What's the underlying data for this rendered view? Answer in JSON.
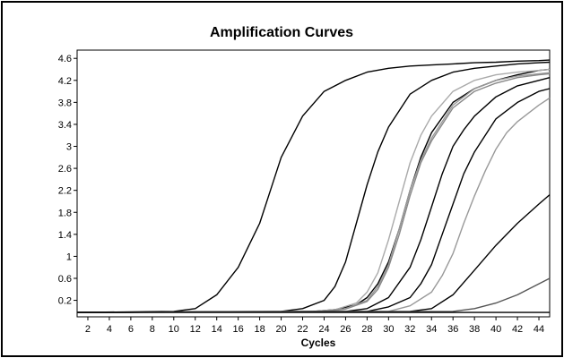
{
  "chart_data": {
    "type": "line",
    "title": "Amplification Curves",
    "xlabel": "Cycles",
    "ylabel": "",
    "xlim": [
      1,
      45
    ],
    "ylim": [
      -0.1,
      4.75
    ],
    "x_ticks": [
      2,
      4,
      6,
      8,
      10,
      12,
      14,
      16,
      18,
      20,
      22,
      24,
      26,
      28,
      30,
      32,
      34,
      36,
      38,
      40,
      42,
      44
    ],
    "y_ticks": [
      0.2,
      0.6,
      1,
      1.4,
      1.8,
      2.2,
      2.6,
      3,
      3.4,
      3.8,
      4.2,
      4.6
    ],
    "y_tick_labels": [
      "0.2",
      "0.6",
      "1",
      "1.4",
      "1.8",
      "2.2",
      "2.6",
      "3",
      "3.4",
      "3.8",
      "4.2",
      "4.6"
    ],
    "grid": false,
    "series": [
      {
        "color": "#000000",
        "x": [
          1,
          10,
          12,
          14,
          16,
          18,
          19,
          20,
          22,
          24,
          26,
          28,
          30,
          32,
          34,
          36,
          38,
          40,
          42,
          44,
          45
        ],
        "y": [
          -0.02,
          0.0,
          0.05,
          0.3,
          0.8,
          1.6,
          2.2,
          2.8,
          3.55,
          4.0,
          4.2,
          4.35,
          4.42,
          4.46,
          4.48,
          4.5,
          4.52,
          4.53,
          4.55,
          4.56,
          4.57
        ]
      },
      {
        "color": "#000000",
        "x": [
          1,
          20,
          22,
          24,
          25,
          26,
          27,
          28,
          29,
          30,
          32,
          34,
          36,
          38,
          40,
          42,
          44,
          45
        ],
        "y": [
          -0.02,
          0.0,
          0.05,
          0.2,
          0.45,
          0.9,
          1.6,
          2.3,
          2.9,
          3.35,
          3.95,
          4.2,
          4.35,
          4.42,
          4.46,
          4.5,
          4.52,
          4.53
        ]
      },
      {
        "color": "#000000",
        "x": [
          1,
          23,
          25,
          27,
          28,
          29,
          30,
          31,
          32,
          33,
          34,
          36,
          38,
          40,
          42,
          44,
          45
        ],
        "y": [
          -0.02,
          0.0,
          0.03,
          0.12,
          0.25,
          0.5,
          0.9,
          1.5,
          2.2,
          2.8,
          3.25,
          3.8,
          4.05,
          4.2,
          4.3,
          4.38,
          4.4
        ]
      },
      {
        "color": "#aaaaaa",
        "x": [
          1,
          23,
          25,
          27,
          28,
          29,
          30,
          31,
          32,
          33,
          34,
          36,
          38,
          40,
          42,
          44,
          45
        ],
        "y": [
          -0.02,
          0.0,
          0.03,
          0.15,
          0.35,
          0.7,
          1.3,
          2.0,
          2.7,
          3.2,
          3.55,
          4.0,
          4.2,
          4.3,
          4.35,
          4.38,
          4.4
        ]
      },
      {
        "color": "#999999",
        "x": [
          1,
          24,
          26,
          28,
          29,
          30,
          31,
          32,
          33,
          34,
          36,
          38,
          40,
          42,
          44,
          45
        ],
        "y": [
          -0.02,
          0.0,
          0.05,
          0.2,
          0.45,
          0.85,
          1.5,
          2.2,
          2.75,
          3.15,
          3.75,
          4.05,
          4.2,
          4.28,
          4.32,
          4.34
        ]
      },
      {
        "color": "#888888",
        "x": [
          1,
          24,
          26,
          28,
          29,
          30,
          31,
          32,
          33,
          34,
          36,
          38,
          40,
          42,
          44,
          45
        ],
        "y": [
          -0.02,
          0.0,
          0.04,
          0.18,
          0.4,
          0.8,
          1.4,
          2.1,
          2.7,
          3.1,
          3.7,
          4.0,
          4.15,
          4.25,
          4.3,
          4.32
        ]
      },
      {
        "color": "#000000",
        "x": [
          1,
          26,
          28,
          30,
          32,
          33,
          34,
          35,
          36,
          37,
          38,
          40,
          42,
          44,
          45
        ],
        "y": [
          -0.02,
          0.0,
          0.05,
          0.25,
          0.8,
          1.3,
          1.9,
          2.5,
          3.0,
          3.3,
          3.55,
          3.9,
          4.1,
          4.2,
          4.25
        ]
      },
      {
        "color": "#000000",
        "x": [
          1,
          28,
          30,
          32,
          33,
          34,
          35,
          36,
          37,
          38,
          40,
          42,
          44,
          45
        ],
        "y": [
          -0.02,
          0.0,
          0.08,
          0.25,
          0.5,
          0.85,
          1.4,
          1.95,
          2.5,
          2.9,
          3.5,
          3.8,
          4.0,
          4.05
        ]
      },
      {
        "color": "#999999",
        "x": [
          1,
          30,
          32,
          34,
          35,
          36,
          37,
          38,
          39,
          40,
          41,
          42,
          43,
          44,
          45
        ],
        "y": [
          -0.02,
          0.0,
          0.1,
          0.35,
          0.65,
          1.05,
          1.6,
          2.1,
          2.55,
          2.95,
          3.25,
          3.45,
          3.6,
          3.75,
          3.88
        ]
      },
      {
        "color": "#000000",
        "x": [
          1,
          32,
          34,
          36,
          38,
          40,
          42,
          44,
          45
        ],
        "y": [
          -0.02,
          0.0,
          0.05,
          0.3,
          0.75,
          1.2,
          1.6,
          1.95,
          2.12
        ]
      },
      {
        "color": "#555555",
        "x": [
          1,
          36,
          38,
          40,
          42,
          44,
          45
        ],
        "y": [
          -0.02,
          0.0,
          0.05,
          0.15,
          0.3,
          0.5,
          0.6
        ]
      },
      {
        "color": "#000000",
        "x": [
          1,
          45
        ],
        "y": [
          -0.02,
          -0.02
        ]
      }
    ]
  }
}
